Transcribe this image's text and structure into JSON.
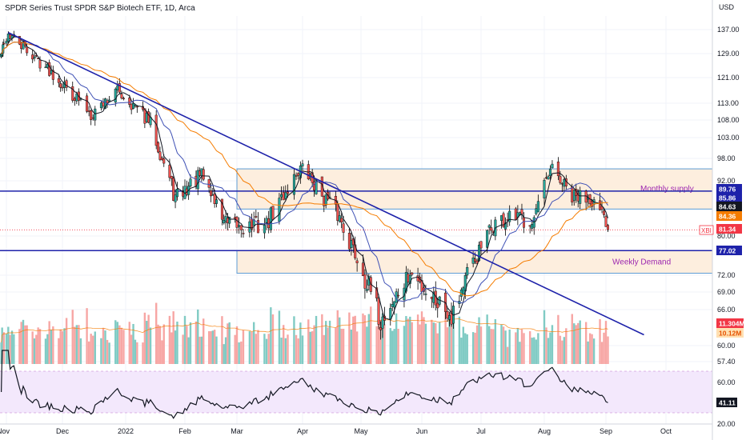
{
  "chart_data": {
    "type": "candlestick",
    "title": "SPDR Series Trust SPDR S&P Biotech ETF, 1D, Arca",
    "currency": "USD",
    "price_ticks": [
      "137.00",
      "129.00",
      "121.00",
      "113.00",
      "108.00",
      "103.00",
      "98.00",
      "92.00",
      "80.00",
      "72.00",
      "69.00",
      "66.00",
      "60.00",
      "57.40"
    ],
    "rsi_ticks": [
      "60.00",
      "20.00"
    ],
    "x_ticks": [
      "Nov",
      "Dec",
      "2022",
      "Feb",
      "Mar",
      "Apr",
      "May",
      "Jun",
      "Jul",
      "Aug",
      "Sep",
      "Oct"
    ],
    "price_tags": [
      {
        "label": "89.76",
        "price": 89.76,
        "bg": "#1e22aa",
        "fg": "#ffffff"
      },
      {
        "label": "85.86",
        "price": 85.86,
        "bg": "#1e22aa",
        "fg": "#ffffff"
      },
      {
        "label": "84.63",
        "price": 84.63,
        "bg": "#131722",
        "fg": "#ffffff"
      },
      {
        "label": "84.36",
        "price": 84.36,
        "bg": "#f57c00",
        "fg": "#ffffff"
      },
      {
        "label": "81.34",
        "price": 81.34,
        "bg": "#f23645",
        "fg": "#ffffff"
      },
      {
        "label": "77.02",
        "price": 77.02,
        "bg": "#1e22aa",
        "fg": "#ffffff"
      }
    ],
    "volume_tags": [
      {
        "label": "11.304M",
        "bg": "#f23645",
        "fg": "#ffffff"
      },
      {
        "label": "10.12M",
        "bg": "#ffe0b2",
        "fg": "#e65100"
      }
    ],
    "rsi_tag": {
      "label": "41.11",
      "bg": "#131722",
      "fg": "#ffffff"
    },
    "symbol_tag": "XBI",
    "zones": [
      {
        "label": "Monthly supply",
        "top": 95.2,
        "bottom": 85.86,
        "color": "#9c27b0"
      },
      {
        "label": "Weekly Demand",
        "top": 77.02,
        "bottom": 72.4,
        "color": "#9c27b0"
      }
    ],
    "hlines": [
      89.76,
      77.02
    ],
    "trendline": {
      "from": {
        "date": "2021-11-02",
        "price": 136.0
      },
      "to": {
        "date": "2022-09-20",
        "price": 61.8
      }
    },
    "key_points": [
      {
        "date": "2021-10-26",
        "price": 128.5
      },
      {
        "date": "2021-11-02",
        "price": 135.5
      },
      {
        "date": "2021-11-25",
        "price": 123.0
      },
      {
        "date": "2021-12-15",
        "price": 110.0
      },
      {
        "date": "2021-12-28",
        "price": 117.0
      },
      {
        "date": "2022-01-14",
        "price": 107.0
      },
      {
        "date": "2022-01-27",
        "price": 88.0
      },
      {
        "date": "2022-02-10",
        "price": 93.5
      },
      {
        "date": "2022-02-24",
        "price": 82.0
      },
      {
        "date": "2022-03-15",
        "price": 82.5
      },
      {
        "date": "2022-03-31",
        "price": 95.5
      },
      {
        "date": "2022-04-20",
        "price": 84.0
      },
      {
        "date": "2022-05-11",
        "price": 64.0
      },
      {
        "date": "2022-05-26",
        "price": 72.0
      },
      {
        "date": "2022-06-16",
        "price": 65.5
      },
      {
        "date": "2022-07-08",
        "price": 83.0
      },
      {
        "date": "2022-07-27",
        "price": 84.0
      },
      {
        "date": "2022-08-05",
        "price": 95.0
      },
      {
        "date": "2022-08-15",
        "price": 88.0
      },
      {
        "date": "2022-08-24",
        "price": 89.0
      },
      {
        "date": "2022-09-02",
        "price": 81.3
      }
    ]
  },
  "colors": {
    "up": "#26a69a",
    "down": "#ef5350",
    "vol_up": "#80cbc4",
    "vol_down": "#f7a6a4",
    "trendline": "#1e22aa",
    "sma_fast": "#131722",
    "sma_mid": "#3f51b5",
    "sma_slow": "#f57c00",
    "zone_fill": "#fdeede",
    "zone_border": "#5b9bd5",
    "rsi_band": "#f3e8fc"
  }
}
